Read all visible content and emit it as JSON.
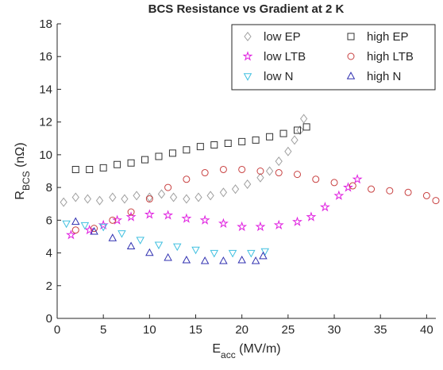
{
  "chart_data": {
    "type": "scatter",
    "title": "BCS Resistance vs Gradient at 2 K",
    "xlabel_parts": [
      "E",
      "acc",
      " (MV/m)"
    ],
    "ylabel_parts": [
      "R",
      "BCS",
      " (nΩ)"
    ],
    "xlim": [
      0,
      41
    ],
    "ylim": [
      0,
      18
    ],
    "xticks": [
      0,
      5,
      10,
      15,
      20,
      25,
      30,
      35,
      40
    ],
    "yticks": [
      0,
      2,
      4,
      6,
      8,
      10,
      12,
      14,
      16,
      18
    ],
    "legend": "northeast",
    "series": [
      {
        "name": "low EP",
        "color": "#a0a0a0",
        "marker": "diamond",
        "x": [
          0.7,
          2,
          3.3,
          4.6,
          6,
          7.3,
          8.6,
          10,
          11.3,
          12.6,
          14,
          15.3,
          16.6,
          18,
          19.3,
          20.6,
          22,
          23,
          24,
          25,
          25.7,
          26.3,
          26.7
        ],
        "values": [
          7.1,
          7.4,
          7.3,
          7.2,
          7.4,
          7.3,
          7.5,
          7.4,
          7.6,
          7.4,
          7.3,
          7.4,
          7.5,
          7.7,
          7.9,
          8.2,
          8.6,
          9.0,
          9.6,
          10.2,
          10.9,
          11.5,
          12.2
        ]
      },
      {
        "name": "high EP",
        "color": "#333333",
        "marker": "square",
        "x": [
          2,
          3.5,
          5,
          6.5,
          8,
          9.5,
          11,
          12.5,
          14,
          15.5,
          17,
          18.5,
          20,
          21.5,
          23,
          24.5,
          26,
          27
        ],
        "values": [
          9.1,
          9.1,
          9.2,
          9.4,
          9.5,
          9.7,
          9.9,
          10.1,
          10.3,
          10.5,
          10.6,
          10.7,
          10.8,
          10.9,
          11.1,
          11.3,
          11.5,
          11.7
        ]
      },
      {
        "name": "low LTB",
        "color": "#e020e0",
        "marker": "star",
        "x": [
          1.5,
          3.5,
          5,
          6.5,
          8,
          10,
          12,
          14,
          16,
          18,
          20,
          22,
          24,
          26,
          27.5,
          29,
          30.5,
          31.5,
          32.5
        ],
        "values": [
          5.1,
          5.4,
          5.7,
          6.0,
          6.2,
          6.35,
          6.3,
          6.1,
          6.0,
          5.8,
          5.6,
          5.6,
          5.7,
          5.9,
          6.2,
          6.8,
          7.5,
          8.0,
          8.5
        ]
      },
      {
        "name": "high LTB",
        "color": "#c84040",
        "marker": "circle",
        "x": [
          2,
          4,
          6,
          8,
          10,
          12,
          14,
          16,
          18,
          20,
          22,
          24,
          26,
          28,
          30,
          32,
          34,
          36,
          38,
          40,
          41
        ],
        "values": [
          5.4,
          5.5,
          6.0,
          6.5,
          7.3,
          8.0,
          8.5,
          8.9,
          9.1,
          9.1,
          9.0,
          8.9,
          8.8,
          8.5,
          8.3,
          8.1,
          7.9,
          7.8,
          7.7,
          7.5,
          7.2
        ]
      },
      {
        "name": "low N",
        "color": "#40c0e0",
        "marker": "triangle-down",
        "x": [
          1,
          3,
          5,
          7,
          9,
          11,
          13,
          15,
          17,
          19,
          21,
          22.5
        ],
        "values": [
          5.8,
          5.7,
          5.6,
          5.2,
          4.8,
          4.5,
          4.4,
          4.2,
          4.0,
          4.0,
          4.0,
          4.1
        ]
      },
      {
        "name": "high N",
        "color": "#3030b0",
        "marker": "triangle-up",
        "x": [
          2,
          4,
          6,
          8,
          10,
          12,
          14,
          16,
          18,
          20,
          21.5,
          22.3
        ],
        "values": [
          5.9,
          5.3,
          4.9,
          4.4,
          4.0,
          3.7,
          3.55,
          3.5,
          3.5,
          3.55,
          3.5,
          3.8
        ]
      }
    ]
  }
}
